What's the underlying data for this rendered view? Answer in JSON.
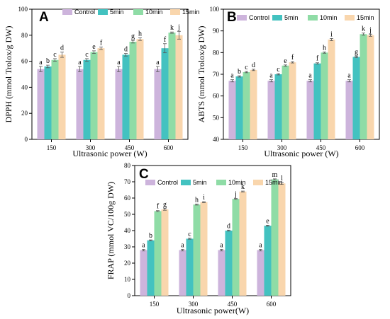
{
  "colors": {
    "Control": "#cdb4dc",
    "5min": "#43c2c0",
    "10min": "#8fdca6",
    "15min": "#f9d6ad"
  },
  "chart_data": [
    {
      "type": "bar",
      "panel": "A",
      "categories": [
        "150",
        "300",
        "450",
        "600"
      ],
      "xlabel": "Ultrasonic power (W)",
      "ylabel": "DPPH (mmol Trolox/g DW)",
      "ylim": [
        0,
        100
      ],
      "yticks": [
        "0",
        "20",
        "40",
        "60",
        "80",
        "100"
      ],
      "legend": "top",
      "series": [
        {
          "name": "Control",
          "values": [
            54,
            54,
            54,
            54
          ],
          "errors": [
            2,
            2,
            2,
            2
          ],
          "letters": [
            "a",
            "a",
            "a",
            "a"
          ]
        },
        {
          "name": "5min",
          "values": [
            56,
            61,
            65,
            70
          ],
          "errors": [
            1,
            1,
            1,
            3.5
          ],
          "letters": [
            "b",
            "c",
            "d",
            "f"
          ]
        },
        {
          "name": "10min",
          "values": [
            61,
            67,
            75,
            82
          ],
          "errors": [
            1,
            1,
            1,
            0.5
          ],
          "letters": [
            "c",
            "e",
            "g",
            "k"
          ]
        },
        {
          "name": "15min",
          "values": [
            65,
            70,
            77,
            80
          ],
          "errors": [
            2,
            1,
            1,
            3
          ],
          "letters": [
            "d",
            "f",
            "h",
            "j"
          ]
        }
      ]
    },
    {
      "type": "bar",
      "panel": "B",
      "categories": [
        "150",
        "300",
        "450",
        "600"
      ],
      "xlabel": "Ultrasonic power (W)",
      "ylabel": "ABTS (mmol Trolox/g DW)",
      "ylim": [
        40,
        100
      ],
      "yticks": [
        "40",
        "50",
        "60",
        "70",
        "80",
        "90",
        "100"
      ],
      "legend": "top",
      "series": [
        {
          "name": "Control",
          "values": [
            67,
            67,
            67,
            67
          ],
          "errors": [
            0.5,
            0.5,
            0.5,
            0.5
          ],
          "letters": [
            "a",
            "a",
            "a",
            "a"
          ]
        },
        {
          "name": "5min",
          "values": [
            69,
            70,
            75,
            78
          ],
          "errors": [
            0.3,
            0.3,
            0.3,
            0.3
          ],
          "letters": [
            "b",
            "c",
            "f",
            "g"
          ]
        },
        {
          "name": "10min",
          "values": [
            71,
            74,
            80,
            88.5
          ],
          "errors": [
            0.3,
            0.3,
            0.3,
            0.5
          ],
          "letters": [
            "c",
            "e",
            "h",
            "k"
          ]
        },
        {
          "name": "15min",
          "values": [
            72,
            75.5,
            86,
            88
          ],
          "errors": [
            0.3,
            0.3,
            0.5,
            0.5
          ],
          "letters": [
            "d",
            "f",
            "i",
            "j"
          ]
        }
      ]
    },
    {
      "type": "bar",
      "panel": "C",
      "categories": [
        "150",
        "300",
        "450",
        "600"
      ],
      "xlabel": "Ultrasonic power(W)",
      "ylabel": "FRAP (mmol VC/100g DW)",
      "ylim": [
        0,
        80
      ],
      "yticks": [
        "0",
        "10",
        "20",
        "30",
        "40",
        "50",
        "60",
        "70",
        "80"
      ],
      "legend": "top",
      "series": [
        {
          "name": "Control",
          "values": [
            28,
            28,
            28,
            28
          ],
          "errors": [
            0.5,
            0.5,
            0.5,
            0.5
          ],
          "letters": [
            "a",
            "a",
            "a",
            "a"
          ]
        },
        {
          "name": "5min",
          "values": [
            34,
            35,
            40,
            43
          ],
          "errors": [
            0.3,
            0.3,
            0.3,
            0.3
          ],
          "letters": [
            "b",
            "c",
            "d",
            "e"
          ]
        },
        {
          "name": "10min",
          "values": [
            52,
            56,
            59.5,
            71.5
          ],
          "errors": [
            0.3,
            0.3,
            0.3,
            0.3
          ],
          "letters": [
            "f",
            "h",
            "j",
            "m"
          ]
        },
        {
          "name": "15min",
          "values": [
            53,
            57.5,
            64,
            69
          ],
          "errors": [
            0.5,
            0.3,
            0.3,
            0.5
          ],
          "letters": [
            "g",
            "i",
            "k",
            "l"
          ]
        }
      ]
    }
  ]
}
